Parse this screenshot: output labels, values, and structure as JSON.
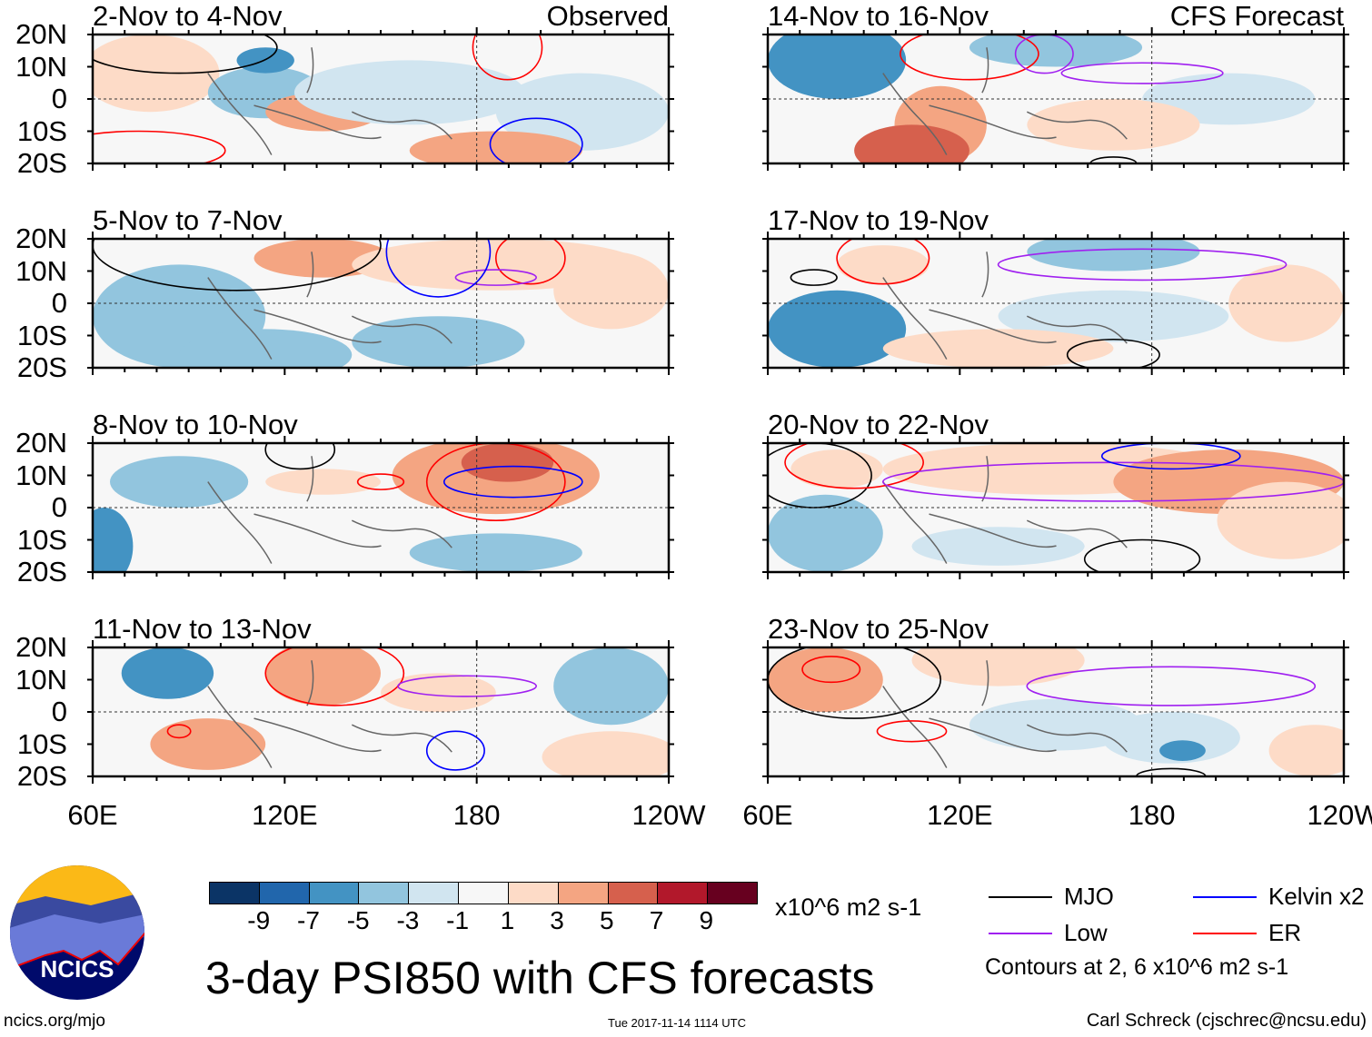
{
  "panels_left": [
    {
      "title": "2-Nov to 4-Nov",
      "tag": "Observed"
    },
    {
      "title": "5-Nov to 7-Nov"
    },
    {
      "title": "8-Nov to 10-Nov"
    },
    {
      "title": "11-Nov to 13-Nov"
    }
  ],
  "panels_right": [
    {
      "title": "14-Nov to 16-Nov",
      "tag": "CFS Forecast"
    },
    {
      "title": "17-Nov to 19-Nov"
    },
    {
      "title": "20-Nov to 22-Nov"
    },
    {
      "title": "23-Nov to 25-Nov"
    }
  ],
  "y_ticks": [
    "20N",
    "10N",
    "0",
    "10S",
    "20S"
  ],
  "x_ticks": [
    "60E",
    "120E",
    "180",
    "120W"
  ],
  "colorbar": {
    "colors": [
      "#0b3466",
      "#2166ac",
      "#4393c3",
      "#92c5de",
      "#d1e5f0",
      "#f7f7f7",
      "#fddbc7",
      "#f4a582",
      "#d6604d",
      "#b2182b",
      "#67001f"
    ],
    "labels": [
      "-9",
      "-7",
      "-5",
      "-3",
      "-1",
      "1",
      "3",
      "5",
      "7",
      "9"
    ],
    "units": "x10^6 m2 s-1"
  },
  "title": "3-day PSI850 with CFS forecasts",
  "legend": [
    {
      "label": "MJO",
      "color": "#000000"
    },
    {
      "label": "Kelvin x2",
      "color": "#0000ff"
    },
    {
      "label": "Low",
      "color": "#a020f0"
    },
    {
      "label": "ER",
      "color": "#ff0000"
    }
  ],
  "contour_note": "Contours at 2, 6 x10^6 m2 s-1",
  "logo_text": "NCICS",
  "footer": {
    "url": "ncics.org/mjo",
    "timestamp": "Tue 2017-11-14 1114 UTC",
    "author": "Carl Schreck (cjschrec@ncsu.edu)"
  }
}
